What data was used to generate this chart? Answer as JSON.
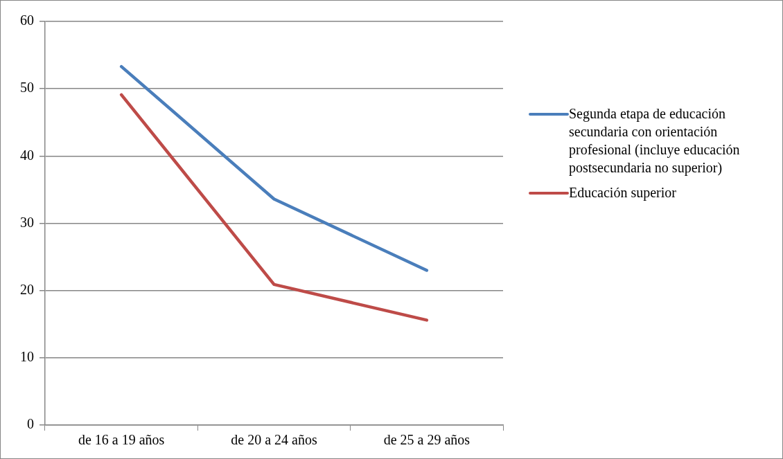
{
  "chart_data": {
    "type": "line",
    "categories": [
      "de 16 a 19 años",
      "de 20 a 24 años",
      "de 25 a 29 años"
    ],
    "series": [
      {
        "name": "Segunda etapa de educación secundaria con orientación profesional (incluye educación postsecundaria no superior)",
        "color": "#4a7ebb",
        "values": [
          53.3,
          33.6,
          23.0
        ]
      },
      {
        "name": "Educación superior",
        "color": "#be4b48",
        "values": [
          49.1,
          20.9,
          15.6
        ]
      }
    ],
    "ylim": [
      0,
      60
    ],
    "yticks": [
      0,
      10,
      20,
      30,
      40,
      50,
      60
    ],
    "grid": "y",
    "legend": "right",
    "marker": "none",
    "line_style": "solid"
  }
}
